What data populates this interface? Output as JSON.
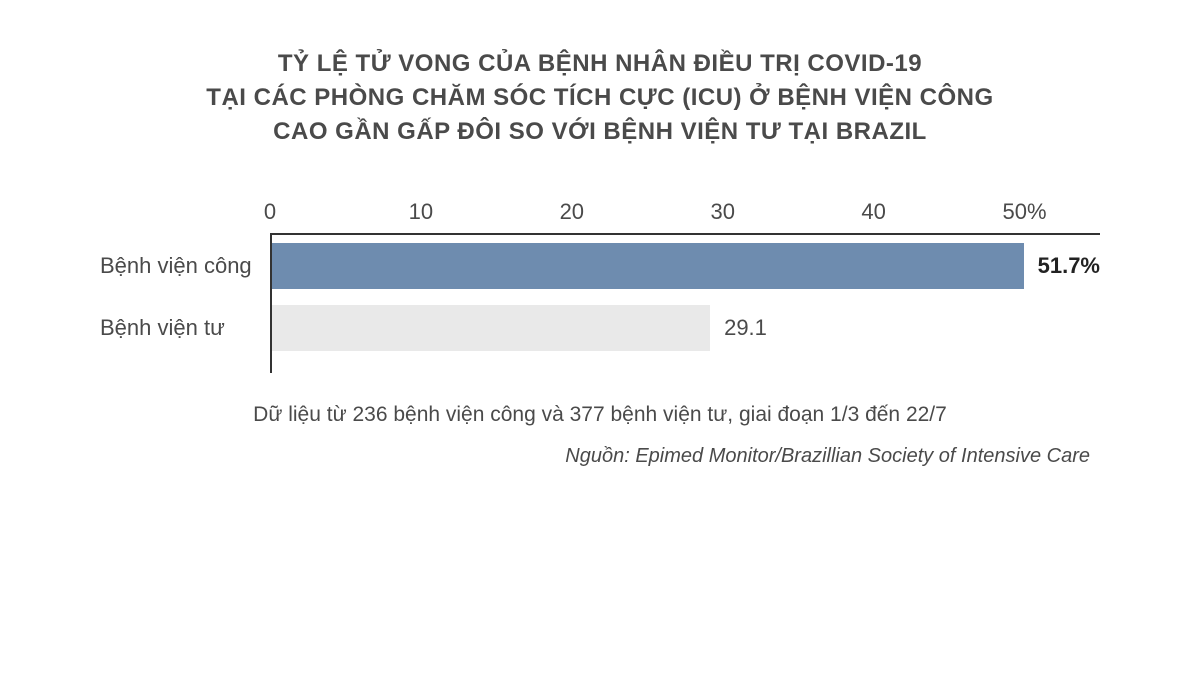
{
  "title": {
    "line1": "TỶ LỆ TỬ VONG CỦA BỆNH NHÂN ĐIỀU TRỊ COVID-19",
    "line2": "TẠI CÁC PHÒNG CHĂM SÓC TÍCH CỰC (ICU) Ở BỆNH VIỆN CÔNG",
    "line3": "CAO GẦN GẤP ĐÔI SO VỚI BỆNH VIỆN TƯ TẠI BRAZIL",
    "fontsize": 24,
    "color": "#4a4a4a",
    "weight": 700
  },
  "chart": {
    "type": "bar-horizontal",
    "xlim": [
      0,
      55
    ],
    "xticks": [
      {
        "pos": 0,
        "label": "0"
      },
      {
        "pos": 10,
        "label": "10"
      },
      {
        "pos": 20,
        "label": "20"
      },
      {
        "pos": 30,
        "label": "30"
      },
      {
        "pos": 40,
        "label": "40"
      },
      {
        "pos": 50,
        "label": "50%"
      }
    ],
    "xaxis_height": 44,
    "tick_fontsize": 22,
    "tick_color": "#4a4a4a",
    "axis_line_color": "#333333",
    "bar_row_height": 62,
    "bar_fill_ratio": 0.74,
    "series": [
      {
        "category": "Bệnh viện công",
        "value": 51.7,
        "value_label": "51.7%",
        "bar_color": "#6e8caf",
        "label_bold": true
      },
      {
        "category": "Bệnh viện tư",
        "value": 29.1,
        "value_label": "29.1",
        "bar_color": "#e9e9e9",
        "label_bold": false
      }
    ],
    "category_fontsize": 22,
    "category_color": "#4a4a4a",
    "value_label_fontsize": 22,
    "value_label_color": "#4a4a4a"
  },
  "note": {
    "text": "Dữ liệu từ 236 bệnh viện công và 377 bệnh viện tư, giai đoạn 1/3 đến 22/7",
    "fontsize": 21,
    "color": "#4a4a4a"
  },
  "source": {
    "text": "Nguồn: Epimed Monitor/Brazillian Society of Intensive Care",
    "fontsize": 20,
    "color": "#4a4a4a",
    "italic": true
  },
  "background_color": "#ffffff"
}
